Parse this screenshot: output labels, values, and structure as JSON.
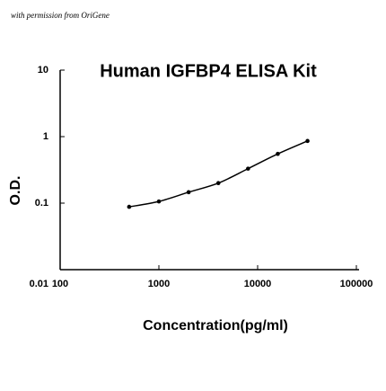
{
  "chart_data": {
    "type": "line",
    "credit": "with permission from OriGene",
    "title": "Human IGFBP4 ELISA Kit",
    "x_label": "Concentration(pg/ml)",
    "y_label": "O.D.",
    "x": [
      500,
      1000,
      2000,
      4000,
      8000,
      16000,
      32000
    ],
    "series": [
      {
        "name": "IGFBP4",
        "color": "#000000",
        "values": [
          0.088,
          0.106,
          0.146,
          0.2,
          0.33,
          0.55,
          0.86
        ]
      }
    ],
    "xlim": [
      100,
      100000
    ],
    "xticks": [
      100,
      1000,
      10000,
      100000
    ],
    "ylim": [
      0.01,
      10
    ],
    "yticks": [
      10,
      1,
      0.1,
      0.01
    ],
    "log_x": true,
    "log_y": true,
    "grid": false
  }
}
